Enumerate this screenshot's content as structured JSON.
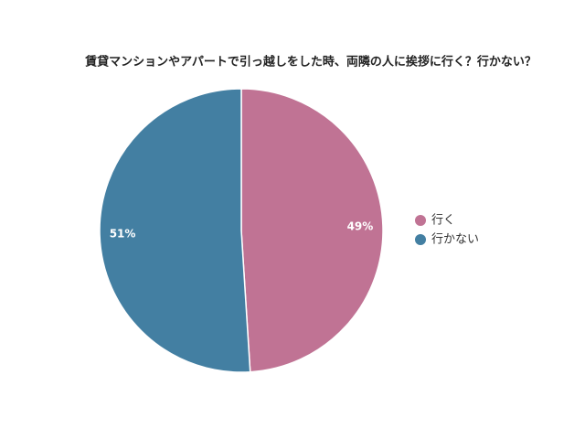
{
  "chart_data": {
    "type": "pie",
    "title": "賃貸マンションやアパートで引っ越しをした時、両隣の人に挨拶に行く？行かない？",
    "categories": [
      "行く",
      "行かない"
    ],
    "values": [
      49,
      51
    ],
    "value_labels": [
      "49%",
      "51%"
    ],
    "colors": [
      "#c07394",
      "#437fa2"
    ],
    "legend": "right"
  }
}
